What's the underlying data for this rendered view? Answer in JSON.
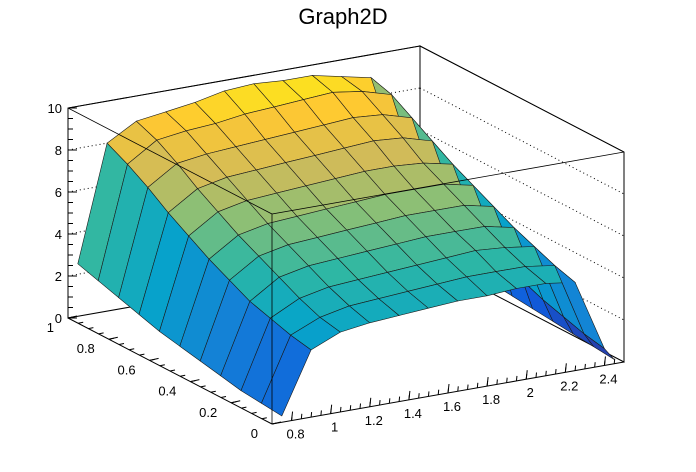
{
  "chart_data": {
    "type": "surface3d",
    "title": "Graph2D",
    "xlabel": "",
    "ylabel": "",
    "zlabel": "",
    "xlim": [
      0.7,
      2.5
    ],
    "ylim": [
      0,
      1
    ],
    "zlim": [
      0,
      10
    ],
    "x_ticks": [
      "0.8",
      "1",
      "1.2",
      "1.4",
      "1.6",
      "1.8",
      "2",
      "2.2",
      "2.4"
    ],
    "y_ticks": [
      "0",
      "0.2",
      "0.4",
      "0.6",
      "0.8",
      "1"
    ],
    "z_ticks": [
      "0",
      "2",
      "4",
      "6",
      "8",
      "10"
    ],
    "grid": "dotted lines on back walls",
    "colormap": [
      "#352a87",
      "#0f5cdd",
      "#1481d6",
      "#06a4ca",
      "#2eb7a4",
      "#87bf77",
      "#d1bb59",
      "#fec832",
      "#f9fb0e"
    ],
    "surface_description": "Surface height decreases from about 8.5-9 at high y to about 4-5 at low y, with edges dropping to 0 near x=0.75 and x=2.45",
    "grid_x": [
      0.75,
      0.9,
      1.05,
      1.2,
      1.35,
      1.5,
      1.65,
      1.8,
      1.95,
      2.1,
      2.25,
      2.4,
      2.45
    ],
    "grid_y": [
      0.0,
      0.1,
      0.2,
      0.3,
      0.4,
      0.5,
      0.6,
      0.7,
      0.8,
      0.9,
      1.0
    ],
    "z": [
      [
        0.3,
        3.2,
        3.8,
        4.0,
        4.1,
        4.2,
        4.3,
        4.3,
        4.4,
        4.4,
        4.2,
        0.8,
        0.2
      ],
      [
        0.4,
        3.4,
        4.0,
        4.3,
        4.4,
        4.5,
        4.6,
        4.7,
        4.7,
        4.7,
        4.5,
        1.0,
        0.3
      ],
      [
        0.5,
        3.7,
        4.4,
        4.7,
        4.8,
        4.9,
        5.0,
        5.1,
        5.2,
        5.1,
        4.9,
        1.3,
        0.4
      ],
      [
        0.7,
        4.0,
        4.9,
        5.2,
        5.3,
        5.4,
        5.5,
        5.6,
        5.6,
        5.6,
        5.3,
        1.6,
        0.5
      ],
      [
        0.9,
        4.5,
        5.4,
        5.7,
        5.8,
        5.9,
        6.0,
        6.1,
        6.1,
        6.1,
        5.8,
        2.0,
        0.6
      ],
      [
        1.1,
        5.0,
        5.9,
        6.2,
        6.3,
        6.4,
        6.5,
        6.6,
        6.6,
        6.6,
        6.3,
        2.4,
        0.7
      ],
      [
        1.3,
        5.6,
        6.5,
        6.8,
        6.9,
        7.0,
        7.1,
        7.2,
        7.2,
        7.1,
        6.8,
        2.8,
        0.8
      ],
      [
        1.6,
        6.2,
        7.1,
        7.4,
        7.5,
        7.6,
        7.7,
        7.8,
        7.9,
        7.8,
        7.4,
        3.2,
        0.9
      ],
      [
        1.9,
        6.9,
        7.8,
        8.0,
        8.1,
        8.2,
        8.3,
        8.4,
        8.5,
        8.4,
        8.0,
        3.6,
        1.0
      ],
      [
        2.2,
        7.5,
        8.4,
        8.6,
        8.7,
        8.9,
        9.0,
        9.1,
        9.2,
        9.0,
        8.6,
        4.0,
        1.2
      ],
      [
        2.5,
        8.0,
        8.8,
        9.0,
        9.2,
        9.5,
        9.6,
        9.5,
        9.5,
        9.2,
        8.9,
        4.4,
        1.4
      ]
    ]
  }
}
